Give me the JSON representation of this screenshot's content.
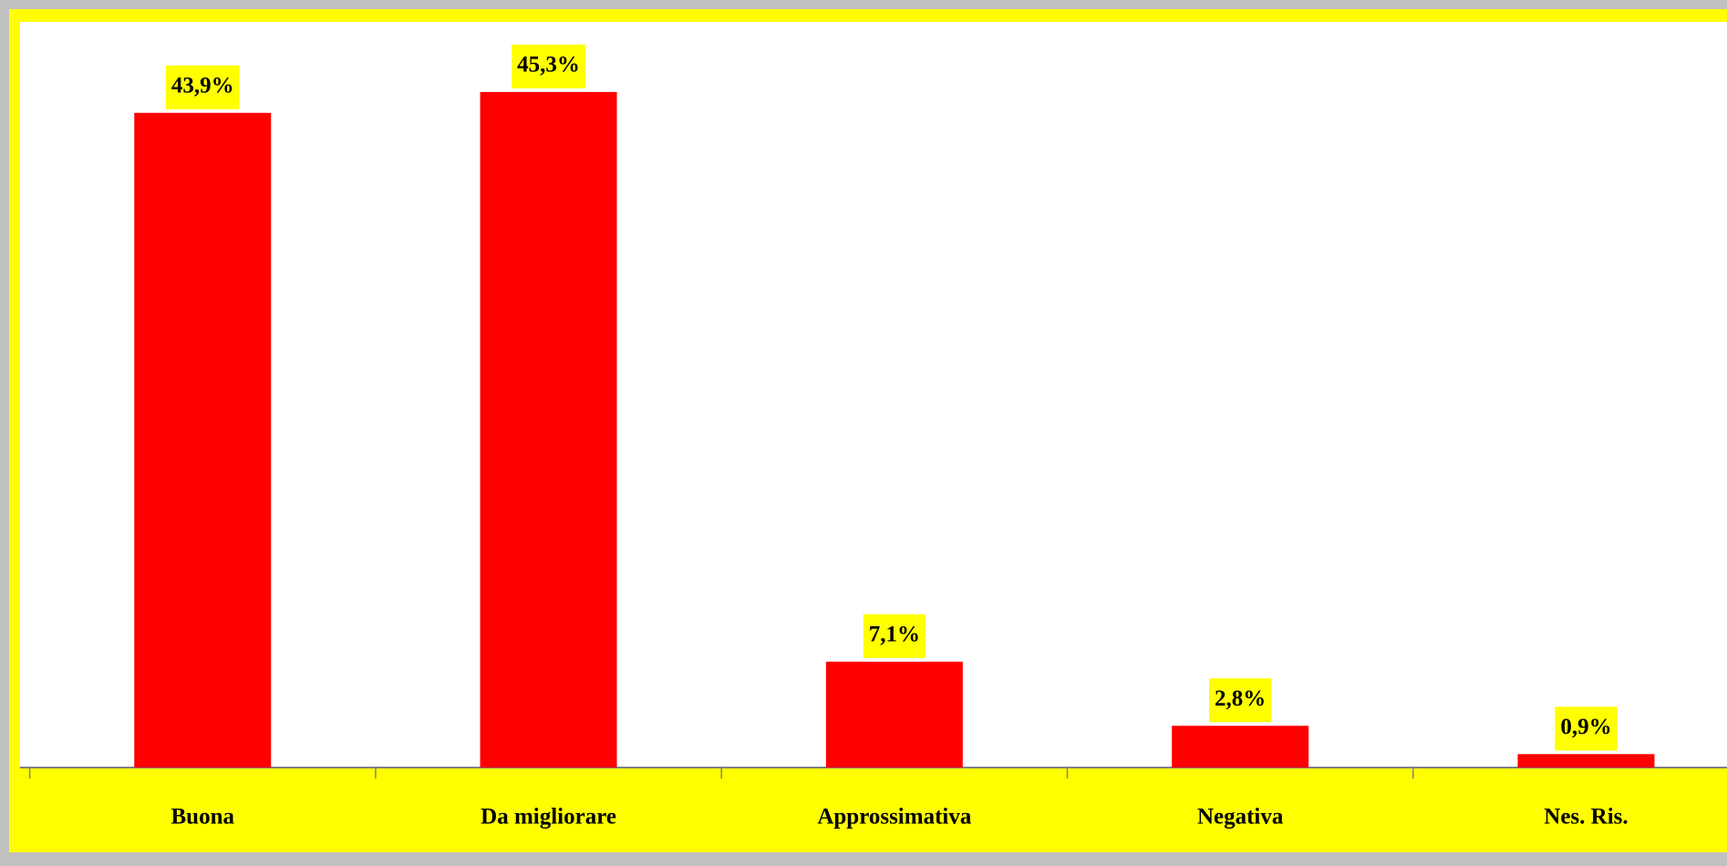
{
  "chart_data": {
    "type": "bar",
    "categories": [
      "Buona",
      "Da migliorare",
      "Approssimativa",
      "Negativa",
      "Nes. Ris."
    ],
    "values": [
      43.9,
      45.3,
      7.1,
      2.8,
      0.9
    ],
    "value_labels": [
      "43,9%",
      "45,3%",
      "7,1%",
      "2,8%",
      "0,9%"
    ],
    "color": "#ff0000",
    "ylim": [
      0,
      50
    ]
  }
}
